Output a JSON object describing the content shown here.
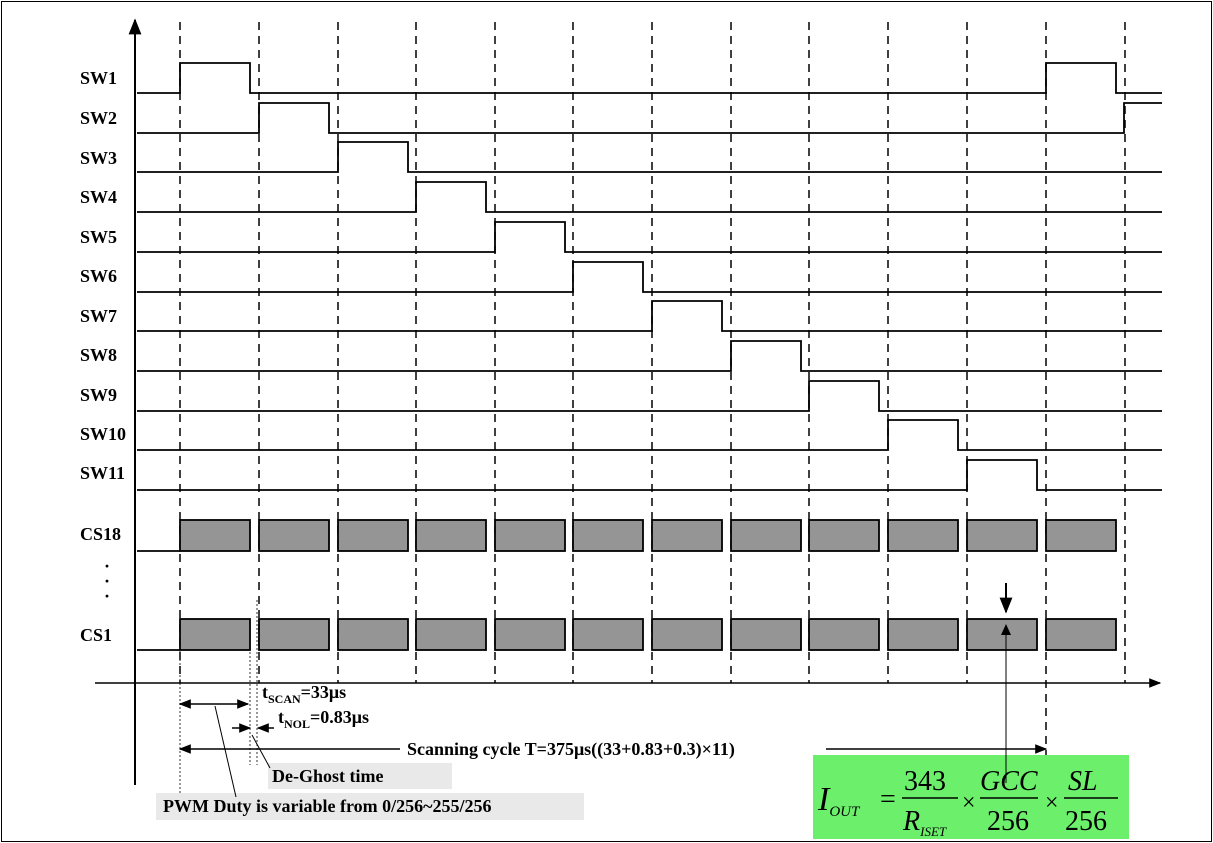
{
  "channels": [
    "SW1",
    "SW2",
    "SW3",
    "SW4",
    "SW5",
    "SW6",
    "SW7",
    "SW8",
    "SW9",
    "SW10",
    "SW11"
  ],
  "current_sinks": [
    "CS18",
    "CS1"
  ],
  "ellipsis": "·",
  "annotations": {
    "t_scan_main": "t",
    "t_scan_sub": "SCAN",
    "t_scan_value": "=33μs",
    "t_nol_main": "t",
    "t_nol_sub": "NOL",
    "t_nol_value": "=0.83μs",
    "scanning_cycle": "Scanning cycle T=375μs((33+0.83+0.3)×11)",
    "de_ghost": "De-Ghost time",
    "pwm_duty": "PWM Duty is variable from 0/256~255/256"
  },
  "equation": {
    "lhs": "I",
    "lhs_sub": "OUT",
    "eq": "=",
    "n1": "343",
    "d1": "R",
    "d1_sub": "ISET",
    "times": "×",
    "n2": "GCC",
    "d2": "256",
    "n3": "SL",
    "d3": "256"
  },
  "colors": {
    "pulse_fill": "#959595",
    "highlight_green": "#6cf06c",
    "label_bg": "#e9e9e9"
  }
}
